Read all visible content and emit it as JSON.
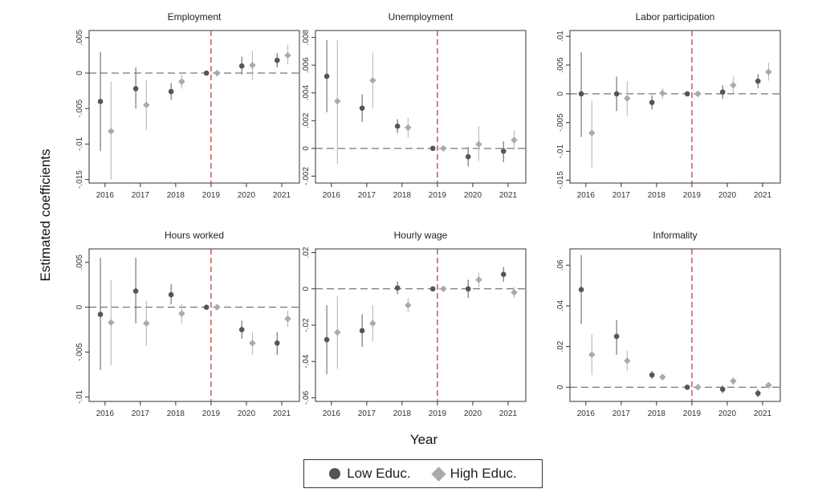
{
  "colors": {
    "low": "#555555",
    "high": "#aaaaaa",
    "low_ci": "#6a6a6a",
    "high_ci": "#b8b8b8",
    "ref_line": "#cc3b3b",
    "zero_line": "#555555",
    "frame": "#333333"
  },
  "figure": {
    "ylabel": "Estimated coefficients",
    "xlabel": "Year"
  },
  "legend": {
    "low_label": "Low Educ.",
    "high_label": "High Educ."
  },
  "chart_data": [
    {
      "type": "scatter",
      "title": "Employment",
      "x": [
        2016,
        2017,
        2018,
        2019,
        2020,
        2021
      ],
      "ylim": [
        -0.0155,
        0.006
      ],
      "yticks": [
        0.005,
        0,
        -0.005,
        -0.01,
        -0.015
      ],
      "ytick_labels": [
        ".005",
        "0",
        "-.005",
        "-.01",
        "-.015"
      ],
      "ref_year": 2019,
      "series": [
        {
          "name": "Low Educ.",
          "values": [
            -0.004,
            -0.0022,
            -0.0026,
            0,
            0.001,
            0.0018
          ],
          "lower": [
            -0.011,
            -0.005,
            -0.0038,
            0,
            -0.0002,
            0.0008
          ],
          "upper": [
            0.003,
            0.0008,
            -0.0014,
            0,
            0.0023,
            0.0028
          ]
        },
        {
          "name": "High Educ.",
          "values": [
            -0.0082,
            -0.0045,
            -0.0012,
            0,
            0.0011,
            0.0025
          ],
          "lower": [
            -0.015,
            -0.008,
            -0.0022,
            0,
            -0.001,
            0.0012
          ],
          "upper": [
            -0.0012,
            -0.001,
            -0.0002,
            0,
            0.0031,
            0.004
          ]
        }
      ]
    },
    {
      "type": "scatter",
      "title": "Unemployment",
      "x": [
        2016,
        2017,
        2018,
        2019,
        2020,
        2021
      ],
      "ylim": [
        -0.0025,
        0.0085
      ],
      "yticks": [
        0.008,
        0.006,
        0.004,
        0.002,
        0,
        -0.002
      ],
      "ytick_labels": [
        ".008",
        ".006",
        ".004",
        ".002",
        "0",
        "-.002"
      ],
      "ref_year": 2019,
      "series": [
        {
          "name": "Low Educ.",
          "values": [
            0.0052,
            0.0029,
            0.0016,
            0,
            -0.0006,
            -0.0002
          ],
          "lower": [
            0.0026,
            0.0019,
            0.0011,
            0,
            -0.0013,
            -0.001
          ],
          "upper": [
            0.0078,
            0.0039,
            0.0021,
            0,
            0.0001,
            0.0005
          ]
        },
        {
          "name": "High Educ.",
          "values": [
            0.0034,
            0.0049,
            0.0015,
            0,
            0.0003,
            0.0006
          ],
          "lower": [
            -0.0011,
            0.0029,
            0.0008,
            0,
            -0.0009,
            -0.0001
          ],
          "upper": [
            0.0078,
            0.0069,
            0.0022,
            0,
            0.0016,
            0.0013
          ]
        }
      ]
    },
    {
      "type": "scatter",
      "title": "Labor participation",
      "x": [
        2016,
        2017,
        2018,
        2019,
        2020,
        2021
      ],
      "ylim": [
        -0.0155,
        0.011
      ],
      "yticks": [
        0.01,
        0.005,
        0,
        -0.005,
        -0.01,
        -0.015
      ],
      "ytick_labels": [
        ".01",
        ".005",
        "0",
        "-.005",
        "-.01",
        "-.015"
      ],
      "ref_year": 2019,
      "series": [
        {
          "name": "Low Educ.",
          "values": [
            0,
            0,
            -0.0015,
            0,
            0.0003,
            0.0022
          ],
          "lower": [
            -0.0075,
            -0.003,
            -0.0027,
            0,
            -0.0009,
            0.001
          ],
          "upper": [
            0.0072,
            0.003,
            -0.0003,
            0,
            0.0015,
            0.0034
          ]
        },
        {
          "name": "High Educ.",
          "values": [
            -0.0068,
            -0.0008,
            0.0001,
            0,
            0.0015,
            0.0038
          ],
          "lower": [
            -0.0128,
            -0.0038,
            -0.0008,
            0,
            0.0001,
            0.0023
          ],
          "upper": [
            -0.0012,
            0.0022,
            0.001,
            0,
            0.003,
            0.0054
          ]
        }
      ]
    },
    {
      "type": "scatter",
      "title": "Hours worked",
      "x": [
        2016,
        2017,
        2018,
        2019,
        2020,
        2021
      ],
      "ylim": [
        -0.0105,
        0.0065
      ],
      "yticks": [
        0.005,
        0,
        -0.005,
        -0.01
      ],
      "ytick_labels": [
        ".005",
        "0",
        "-.005",
        "-.01"
      ],
      "ref_year": 2019,
      "series": [
        {
          "name": "Low Educ.",
          "values": [
            -0.0008,
            0.0018,
            0.0014,
            0,
            -0.0025,
            -0.004
          ],
          "lower": [
            -0.007,
            -0.0018,
            0.0003,
            0,
            -0.0035,
            -0.0053
          ],
          "upper": [
            0.0055,
            0.0055,
            0.0026,
            0,
            -0.0015,
            -0.0028
          ]
        },
        {
          "name": "High Educ.",
          "values": [
            -0.0017,
            -0.0018,
            -0.0007,
            0,
            -0.004,
            -0.0013
          ],
          "lower": [
            -0.0065,
            -0.0043,
            -0.0018,
            0,
            -0.0053,
            -0.0022
          ],
          "upper": [
            0.003,
            0.0007,
            0.0004,
            0,
            -0.0028,
            -0.0004
          ]
        }
      ]
    },
    {
      "type": "scatter",
      "title": "Hourly wage",
      "x": [
        2016,
        2017,
        2018,
        2019,
        2020,
        2021
      ],
      "ylim": [
        -0.062,
        0.022
      ],
      "yticks": [
        0.02,
        0,
        -0.02,
        -0.04,
        -0.06
      ],
      "ytick_labels": [
        ".02",
        "0",
        "-.02",
        "-.04",
        "-.06"
      ],
      "ref_year": 2019,
      "series": [
        {
          "name": "Low Educ.",
          "values": [
            -0.028,
            -0.023,
            0.0005,
            0,
            0,
            0.008
          ],
          "lower": [
            -0.047,
            -0.032,
            -0.003,
            0,
            -0.005,
            0.004
          ],
          "upper": [
            -0.009,
            -0.014,
            0.004,
            0,
            0.005,
            0.012
          ]
        },
        {
          "name": "High Educ.",
          "values": [
            -0.024,
            -0.019,
            -0.009,
            0,
            0.005,
            -0.002
          ],
          "lower": [
            -0.044,
            -0.029,
            -0.013,
            0,
            0.001,
            -0.005
          ],
          "upper": [
            -0.004,
            -0.009,
            -0.005,
            0,
            0.009,
            0.001
          ]
        }
      ]
    },
    {
      "type": "scatter",
      "title": "Informality",
      "x": [
        2016,
        2017,
        2018,
        2019,
        2020,
        2021
      ],
      "ylim": [
        -0.007,
        0.068
      ],
      "yticks": [
        0.06,
        0.04,
        0.02,
        0
      ],
      "ytick_labels": [
        ".06",
        ".04",
        ".02",
        "0"
      ],
      "ref_year": 2019,
      "series": [
        {
          "name": "Low Educ.",
          "values": [
            0.048,
            0.025,
            0.006,
            0,
            -0.001,
            -0.003
          ],
          "lower": [
            0.031,
            0.016,
            0.004,
            0,
            -0.003,
            -0.005
          ],
          "upper": [
            0.065,
            0.033,
            0.008,
            0,
            0.001,
            -0.001
          ]
        },
        {
          "name": "High Educ.",
          "values": [
            0.016,
            0.013,
            0.005,
            0,
            0.003,
            0.001
          ],
          "lower": [
            0.006,
            0.008,
            0.004,
            0,
            0.001,
            0
          ],
          "upper": [
            0.026,
            0.018,
            0.006,
            0,
            0.005,
            0.002
          ]
        }
      ]
    }
  ]
}
